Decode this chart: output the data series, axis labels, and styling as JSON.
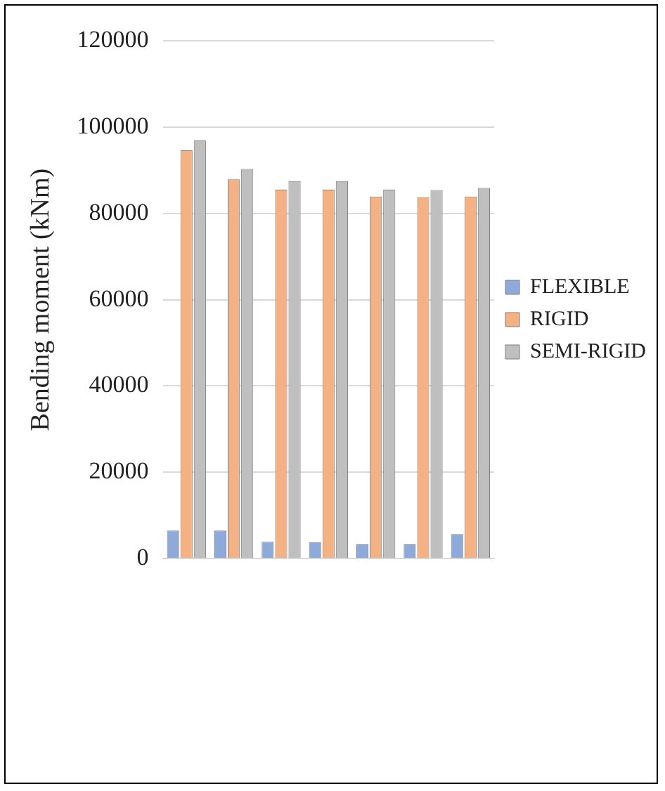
{
  "chart_data": {
    "type": "bar",
    "ylabel": "Bending moment (kNm)",
    "categories": [
      null,
      null,
      null,
      null,
      null,
      null,
      null
    ],
    "series": [
      {
        "name": "FLEXIBLE",
        "color": "#8eaadb",
        "values": [
          6500,
          6500,
          3900,
          3800,
          3300,
          3300,
          5700
        ]
      },
      {
        "name": "RIGID",
        "color": "#f4b183",
        "values": [
          94600,
          87900,
          85500,
          85500,
          83900,
          83800,
          83900
        ]
      },
      {
        "name": "SEMI-RIGID",
        "color": "#bfbfbf",
        "values": [
          96900,
          90300,
          87500,
          87500,
          85500,
          85400,
          85900
        ]
      }
    ],
    "ylim": [
      0,
      120000
    ],
    "yticks": [
      0,
      20000,
      40000,
      60000,
      80000,
      100000,
      120000
    ],
    "grid": "y",
    "legend": "right"
  }
}
